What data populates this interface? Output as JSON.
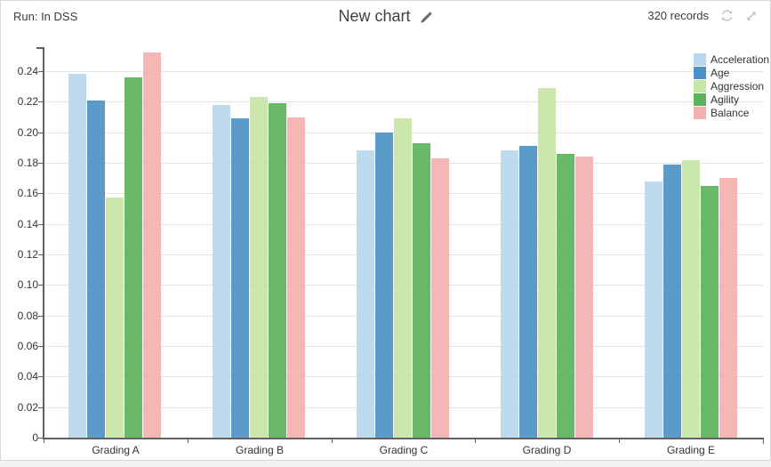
{
  "header": {
    "run_label": "Run: In DSS",
    "title": "New chart",
    "records": "320 records",
    "icons": {
      "edit": "pencil",
      "refresh": "circular-arrows",
      "expand": "diagonal-resize-arrows"
    }
  },
  "chart_data": {
    "type": "bar",
    "title": "New chart",
    "xlabel": "",
    "ylabel": "",
    "categories": [
      "Grading A",
      "Grading B",
      "Grading C",
      "Grading D",
      "Grading E"
    ],
    "series": [
      {
        "name": "Acceleration",
        "color": "#b9d7ec",
        "values": [
          0.238,
          0.218,
          0.188,
          0.188,
          0.168
        ]
      },
      {
        "name": "Age",
        "color": "#4d92c6",
        "values": [
          0.221,
          0.209,
          0.2,
          0.191,
          0.179
        ]
      },
      {
        "name": "Aggression",
        "color": "#c7e5a6",
        "values": [
          0.157,
          0.223,
          0.209,
          0.229,
          0.182
        ]
      },
      {
        "name": "Agility",
        "color": "#5cb35c",
        "values": [
          0.236,
          0.219,
          0.193,
          0.186,
          0.165
        ]
      },
      {
        "name": "Balance",
        "color": "#f4b0b0",
        "values": [
          0.252,
          0.21,
          0.183,
          0.184,
          0.17
        ]
      }
    ],
    "ylim": [
      0,
      0.26
    ],
    "ytick_interval": 0.02,
    "ytick_labels": [
      "0",
      "0.02",
      "0.04",
      "0.06",
      "0.08",
      "0.10",
      "0.12",
      "0.14",
      "0.16",
      "0.18",
      "0.20",
      "0.22",
      "0.24"
    ],
    "grid": true,
    "legend_position": "top-right",
    "axis_color": "#606060",
    "gridline_color": "#e4e4e4"
  }
}
